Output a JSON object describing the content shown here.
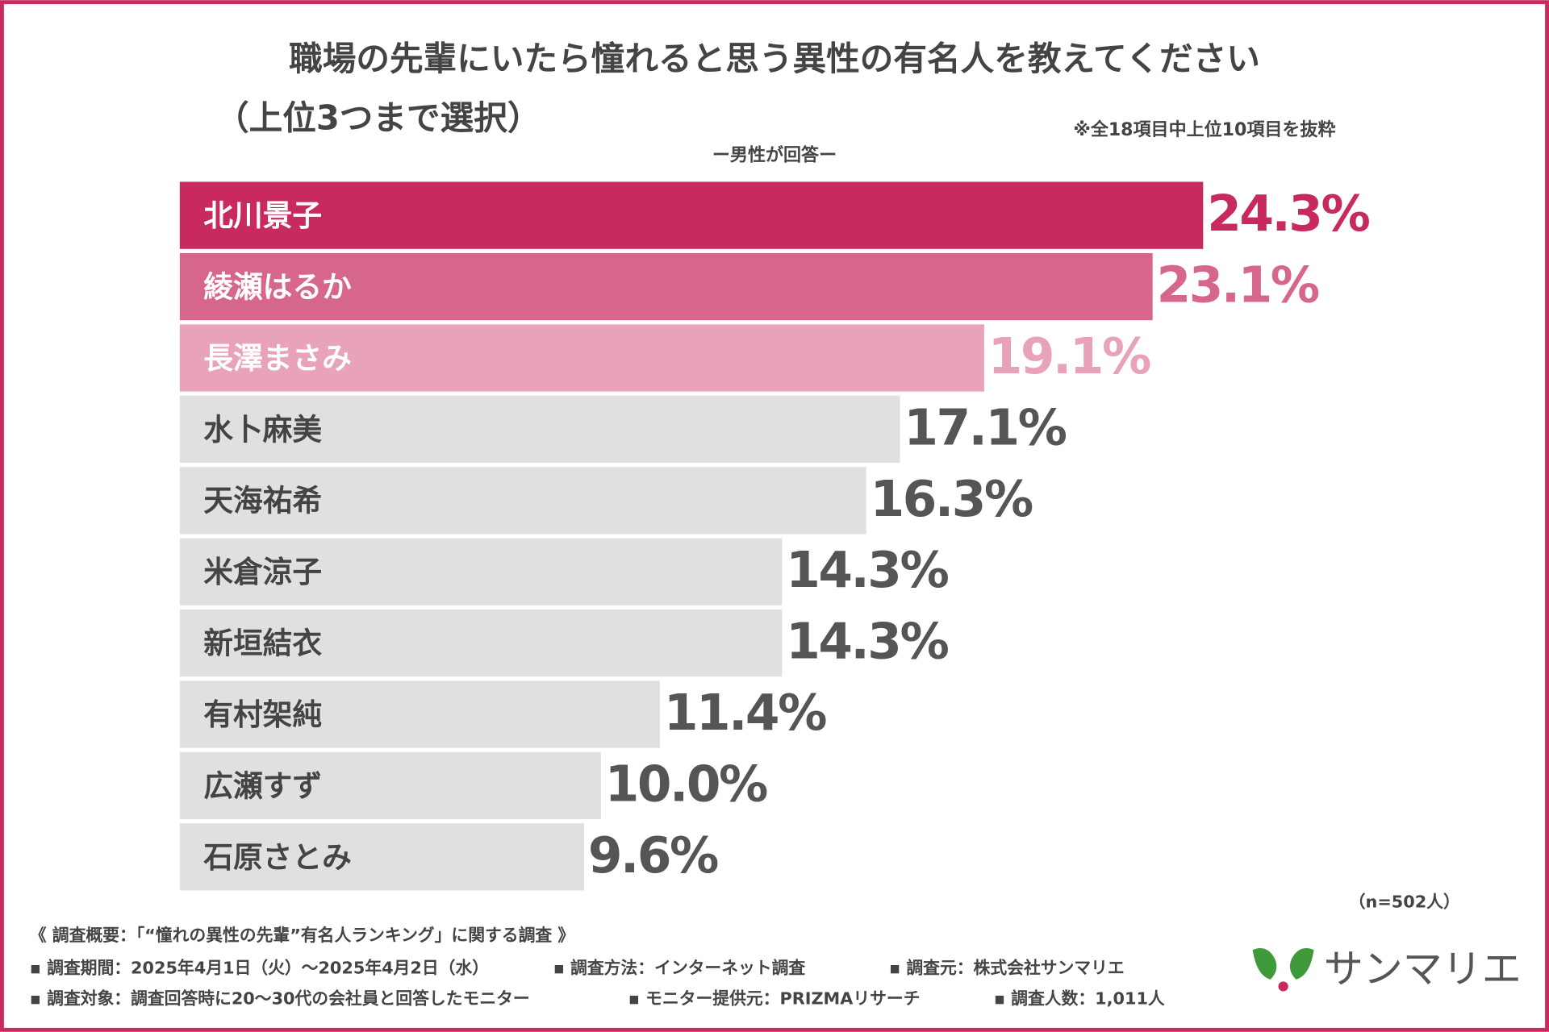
{
  "chart_data": {
    "type": "bar",
    "orientation": "horizontal",
    "title": "職場の先輩にいたら憧れると思う異性の有名人を教えてください",
    "title_line2": "（上位3つまで選択）",
    "note": "※全18項目中上位10項目を抜粋",
    "subtitle": "ー男性が回答ー",
    "sample": "（n=502人）",
    "categories": [
      "北川景子",
      "綾瀬はるか",
      "長澤まさみ",
      "水卜麻美",
      "天海祐希",
      "米倉涼子",
      "新垣結衣",
      "有村架純",
      "広瀬すず",
      "石原さとみ"
    ],
    "values": [
      24.3,
      23.1,
      19.1,
      17.1,
      16.3,
      14.3,
      14.3,
      11.4,
      10.0,
      9.6
    ],
    "value_labels": [
      "24.3%",
      "23.1%",
      "19.1%",
      "17.1%",
      "16.3%",
      "14.3%",
      "14.3%",
      "11.4%",
      "10.0%",
      "9.6%"
    ],
    "colors": [
      "#c8295e",
      "#d7678a",
      "#e8a3b8",
      "#e0e0e0",
      "#e0e0e0",
      "#e0e0e0",
      "#e0e0e0",
      "#e0e0e0",
      "#e0e0e0",
      "#e0e0e0"
    ],
    "label_colors": [
      "#c8295e",
      "#d7678a",
      "#e8a3b8",
      "#555555",
      "#555555",
      "#555555",
      "#555555",
      "#555555",
      "#555555",
      "#555555"
    ],
    "name_colors": [
      "#ffffff",
      "#ffffff",
      "#ffffff",
      "#444444",
      "#444444",
      "#444444",
      "#444444",
      "#444444",
      "#444444",
      "#444444"
    ]
  },
  "footer": {
    "heading": "《 調査概要：「“憧れの異性の先輩”有名人ランキング」に関する調査 》",
    "rows": [
      [
        "▪ 調査期間：2025年4月1日（火）～2025年4月2日（水）",
        "▪ 調査方法：インターネット調査",
        "▪ 調査元：株式会社サンマリエ"
      ],
      [
        "▪ 調査対象：調査回答時に20～30代の会社員と回答したモニター",
        "▪ モニター提供元：PRIZMAリサーチ",
        "▪ 調査人数：1,011人"
      ]
    ],
    "logo": "サンマリエ"
  }
}
